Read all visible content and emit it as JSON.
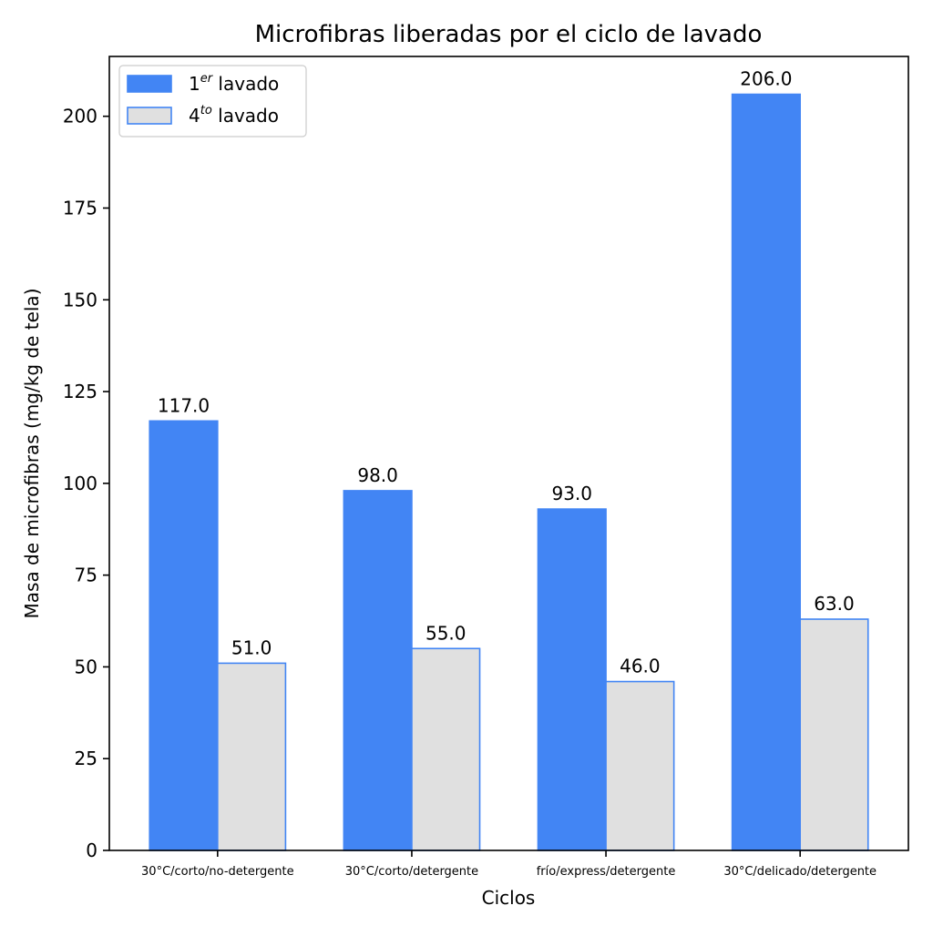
{
  "chart_data": {
    "type": "bar",
    "title": "Microfibras liberadas por el ciclo de lavado",
    "xlabel": "Ciclos",
    "ylabel": "Masa de microfibras (mg/kg de tela)",
    "categories": [
      "30°C/corto/no-detergente",
      "30°C/corto/detergente",
      "frío/express/detergente",
      "30°C/delicado/detergente"
    ],
    "series": [
      {
        "name_prefix": "1",
        "name_sup": "er",
        "name_suffix": " lavado",
        "values": [
          117.0,
          98.0,
          93.0,
          206.0
        ],
        "labels": [
          "117.0",
          "98.0",
          "93.0",
          "206.0"
        ],
        "fill": "#4285f4",
        "edge": "#4285f4"
      },
      {
        "name_prefix": "4",
        "name_sup": "to",
        "name_suffix": " lavado",
        "values": [
          51.0,
          55.0,
          46.0,
          63.0
        ],
        "labels": [
          "51.0",
          "55.0",
          "46.0",
          "63.0"
        ],
        "fill": "#e0e0e0",
        "edge": "#4285f4"
      }
    ],
    "ylim": [
      0,
      216.3
    ],
    "yticks": [
      0,
      25,
      50,
      75,
      100,
      125,
      150,
      175,
      200
    ],
    "legend_position": "upper left",
    "grid": false
  }
}
